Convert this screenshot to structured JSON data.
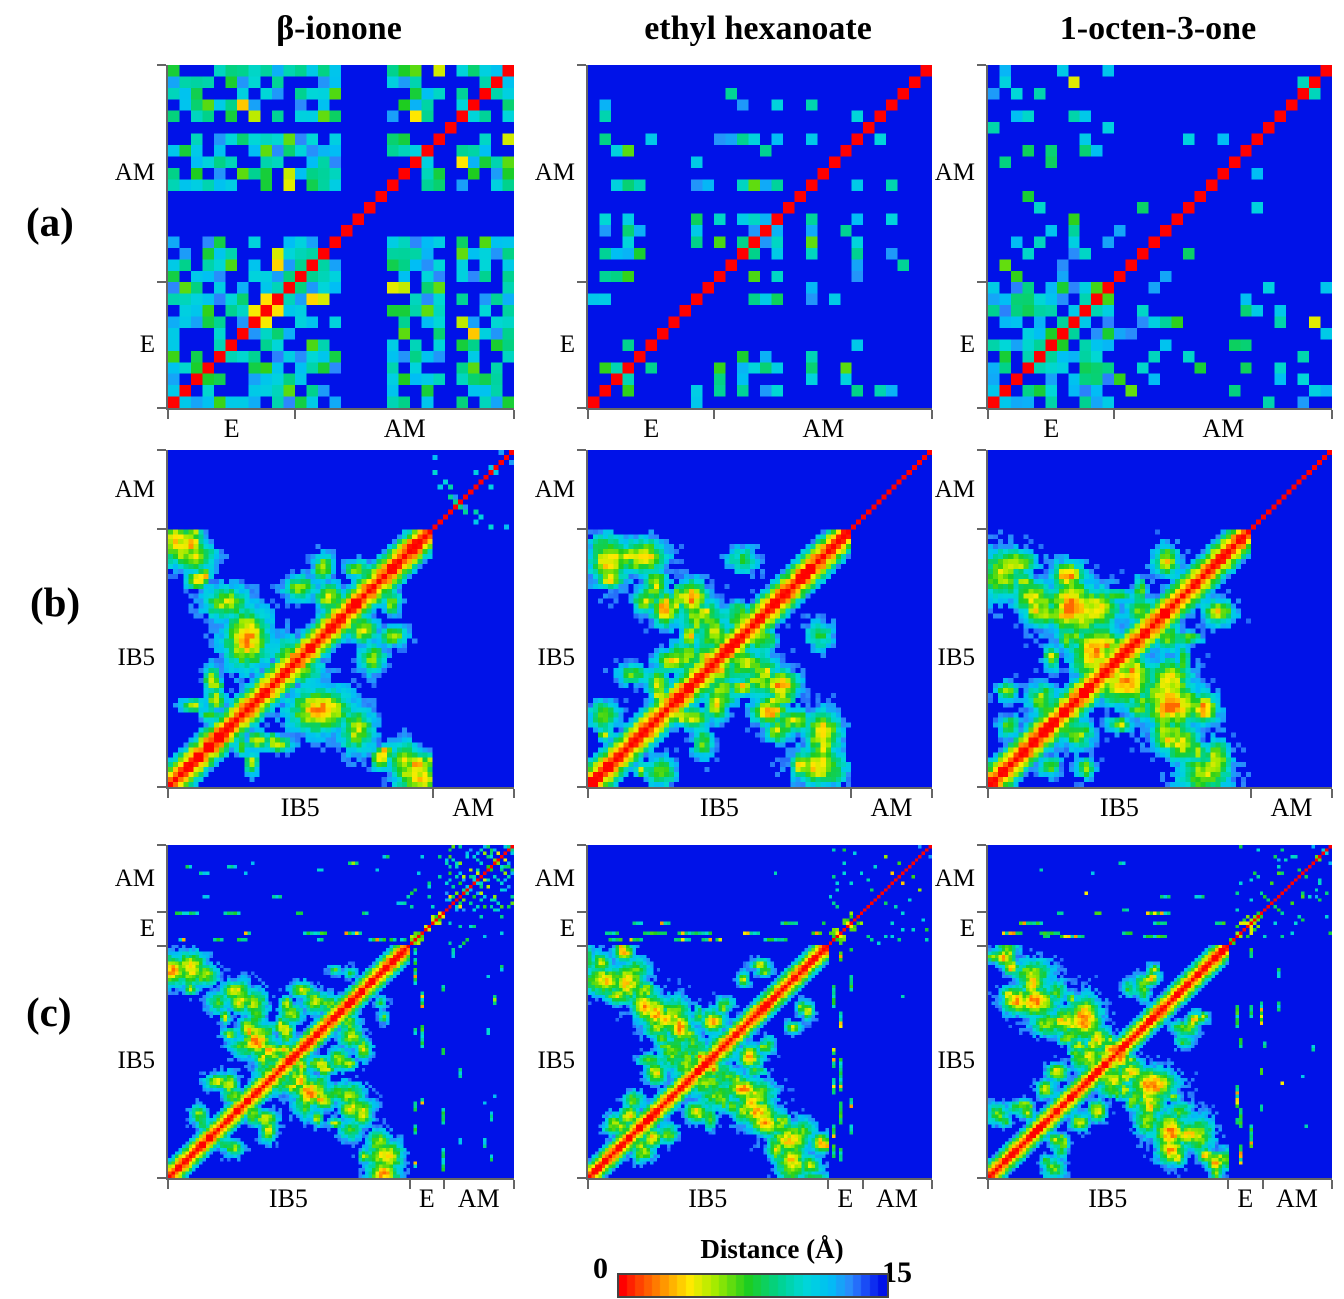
{
  "figure": {
    "column_titles": [
      "β-ionone",
      "ethyl hexanoate",
      "1-octen-3-one"
    ],
    "row_labels": [
      "(a)",
      "(b)",
      "(c)"
    ],
    "colorbar": {
      "title": "Distance (Å)",
      "min_label": "0",
      "max_label": "15",
      "min": 0,
      "max": 15,
      "orientation": "horizontal",
      "segments": 32,
      "gradient_order": "red, orange, yellow, green, cyan, light blue, blue"
    },
    "colors": {
      "background": "#ffffff",
      "matrix_far": "#0012e0",
      "matrix_near": "#ff0000",
      "axis": "#666666",
      "text": "#000000"
    }
  },
  "chart_data": [
    {
      "id": "a-beta-ionone",
      "type": "heatmap",
      "row_panel": "(a)",
      "compound": "β-ionone",
      "n": 30,
      "value_range": [
        0,
        15
      ],
      "value_label": "Distance (Å)",
      "x_blocks": [
        {
          "label": "E",
          "from": 0,
          "to": 0.367
        },
        {
          "label": "AM",
          "from": 0.367,
          "to": 1
        }
      ],
      "y_blocks": [
        {
          "label": "AM",
          "from": 0.367,
          "to": 1
        },
        {
          "label": "E",
          "from": 0,
          "to": 0.367
        }
      ],
      "x_ticks_pct": [
        0,
        36.7,
        100
      ],
      "y_ticks_pct": [
        0,
        63.3,
        100
      ],
      "pattern": {
        "kind": "speckle",
        "seed": 11,
        "density": 0.62,
        "stripes": 5,
        "clustered": false,
        "corner": false,
        "eCells": 11
      },
      "description": "E–AM residue distance matrix; red zero diagonal, dense cyan/green 8–13 Å contacts across both blocks with several all-blue (>15 Å) rows/columns."
    },
    {
      "id": "a-ethyl-hexanoate",
      "type": "heatmap",
      "row_panel": "(a)",
      "compound": "ethyl hexanoate",
      "n": 30,
      "value_range": [
        0,
        15
      ],
      "value_label": "Distance (Å)",
      "x_blocks": [
        {
          "label": "E",
          "from": 0,
          "to": 0.367
        },
        {
          "label": "AM",
          "from": 0.367,
          "to": 1
        }
      ],
      "y_blocks": [
        {
          "label": "AM",
          "from": 0.367,
          "to": 1
        },
        {
          "label": "E",
          "from": 0,
          "to": 0.367
        }
      ],
      "x_ticks_pct": [
        0,
        36.7,
        100
      ],
      "y_ticks_pct": [
        0,
        63.3,
        100
      ],
      "pattern": {
        "kind": "speckle",
        "seed": 22,
        "density": 0.5,
        "stripes": 3,
        "clustered": true,
        "corner": false,
        "eCells": 11
      },
      "description": "Sparser map: cyan/green contacts grouped in clusters, mostly blue (>15 Å) background, red zero diagonal."
    },
    {
      "id": "a-1-octen-3-one",
      "type": "heatmap",
      "row_panel": "(a)",
      "compound": "1-octen-3-one",
      "n": 30,
      "value_range": [
        0,
        15
      ],
      "value_label": "Distance (Å)",
      "x_blocks": [
        {
          "label": "E",
          "from": 0,
          "to": 0.367
        },
        {
          "label": "AM",
          "from": 0.367,
          "to": 1
        }
      ],
      "y_blocks": [
        {
          "label": "AM",
          "from": 0.367,
          "to": 1
        },
        {
          "label": "E",
          "from": 0,
          "to": 0.367
        }
      ],
      "x_ticks_pct": [
        0,
        36.7,
        100
      ],
      "y_ticks_pct": [
        0,
        63.3,
        100
      ],
      "pattern": {
        "kind": "speckle",
        "seed": 33,
        "density": 0.5,
        "stripes": 0,
        "clustered": false,
        "corner": true,
        "eCells": 11
      },
      "description": "Contacts concentrated in the E×E corner (bottom-left) with faint E×AM bands; AM×AM nearly all blue; red zero diagonal."
    },
    {
      "id": "b-beta-ionone",
      "type": "heatmap",
      "row_panel": "(b)",
      "compound": "β-ionone",
      "n": 68,
      "value_range": [
        0,
        15
      ],
      "value_label": "Distance (Å)",
      "x_blocks": [
        {
          "label": "IB5",
          "from": 0,
          "to": 0.765
        },
        {
          "label": "AM",
          "from": 0.765,
          "to": 1
        }
      ],
      "y_blocks": [
        {
          "label": "AM",
          "from": 0.765,
          "to": 1
        },
        {
          "label": "IB5",
          "from": 0,
          "to": 0.765
        }
      ],
      "x_ticks_pct": [
        0,
        76.5,
        100
      ],
      "y_ticks_pct": [
        0,
        23.5,
        100
      ],
      "pattern": {
        "kind": "contact",
        "seed": 44,
        "B": 52,
        "antiBlobs": 13,
        "diagBlobs": 9,
        "amSpeckle": 0.09
      },
      "description": "IB5–AM map: thick red/yellow/green diagonal band in IB5 with separated anti-diagonal contact blobs (X motif); AM block shows thin dotted red diagonal plus sparse cyan speckle."
    },
    {
      "id": "b-ethyl-hexanoate",
      "type": "heatmap",
      "row_panel": "(b)",
      "compound": "ethyl hexanoate",
      "n": 68,
      "value_range": [
        0,
        15
      ],
      "value_label": "Distance (Å)",
      "x_blocks": [
        {
          "label": "IB5",
          "from": 0,
          "to": 0.765
        },
        {
          "label": "AM",
          "from": 0.765,
          "to": 1
        }
      ],
      "y_blocks": [
        {
          "label": "AM",
          "from": 0.765,
          "to": 1
        },
        {
          "label": "IB5",
          "from": 0,
          "to": 0.765
        }
      ],
      "x_ticks_pct": [
        0,
        76.5,
        100
      ],
      "y_ticks_pct": [
        0,
        23.5,
        100
      ],
      "pattern": {
        "kind": "contact",
        "seed": 55,
        "B": 52,
        "antiBlobs": 21,
        "diagBlobs": 13,
        "amSpeckle": 0.012
      },
      "description": "Denser continuous X-shaped contact lattice within IB5; AM block essentially empty except dotted red diagonal."
    },
    {
      "id": "b-1-octen-3-one",
      "type": "heatmap",
      "row_panel": "(b)",
      "compound": "1-octen-3-one",
      "n": 68,
      "value_range": [
        0,
        15
      ],
      "value_label": "Distance (Å)",
      "x_blocks": [
        {
          "label": "IB5",
          "from": 0,
          "to": 0.765
        },
        {
          "label": "AM",
          "from": 0.765,
          "to": 1
        }
      ],
      "y_blocks": [
        {
          "label": "AM",
          "from": 0.765,
          "to": 1
        },
        {
          "label": "IB5",
          "from": 0,
          "to": 0.765
        }
      ],
      "x_ticks_pct": [
        0,
        76.5,
        100
      ],
      "y_ticks_pct": [
        0,
        23.5,
        100
      ],
      "pattern": {
        "kind": "contact",
        "seed": 66,
        "B": 52,
        "antiBlobs": 21,
        "diagBlobs": 13,
        "amSpeckle": 0.02
      },
      "description": "Dense X-shaped IB5 contact lattice with blue diamond voids; AM block nearly empty except dotted red diagonal."
    },
    {
      "id": "c-beta-ionone",
      "type": "heatmap",
      "row_panel": "(c)",
      "compound": "β-ionone",
      "n": 100,
      "value_range": [
        0,
        15
      ],
      "value_label": "Distance (Å)",
      "x_blocks": [
        {
          "label": "IB5",
          "from": 0,
          "to": 0.698
        },
        {
          "label": "E",
          "from": 0.698,
          "to": 0.798
        },
        {
          "label": "AM",
          "from": 0.798,
          "to": 1
        }
      ],
      "y_blocks": [
        {
          "label": "AM",
          "from": 0.798,
          "to": 1
        },
        {
          "label": "E",
          "from": 0.698,
          "to": 0.798
        },
        {
          "label": "IB5",
          "from": 0,
          "to": 0.698
        }
      ],
      "x_ticks_pct": [
        0,
        69.8,
        79.8,
        100
      ],
      "y_ticks_pct": [
        0,
        20.2,
        30.2,
        100
      ],
      "pattern": {
        "kind": "contact3",
        "seed": 77,
        "B1": 70,
        "B2": 80,
        "antiBlobs": 30,
        "diagBlobs": 17,
        "amDensity": 0.3,
        "amIb5Rows": 0.5,
        "amIb5Density": 0.12
      },
      "description": "IB5+E+AM map: dense IB5 X lattice; E rows/columns form cyan-to-orange streaks; AM corner densely speckled with dotted red diagonal; dotted AM×IB5 rows."
    },
    {
      "id": "c-ethyl-hexanoate",
      "type": "heatmap",
      "row_panel": "(c)",
      "compound": "ethyl hexanoate",
      "n": 100,
      "value_range": [
        0,
        15
      ],
      "value_label": "Distance (Å)",
      "x_blocks": [
        {
          "label": "IB5",
          "from": 0,
          "to": 0.698
        },
        {
          "label": "E",
          "from": 0.698,
          "to": 0.798
        },
        {
          "label": "AM",
          "from": 0.798,
          "to": 1
        }
      ],
      "y_blocks": [
        {
          "label": "AM",
          "from": 0.798,
          "to": 1
        },
        {
          "label": "E",
          "from": 0.698,
          "to": 0.798
        },
        {
          "label": "IB5",
          "from": 0,
          "to": 0.698
        }
      ],
      "x_ticks_pct": [
        0,
        69.8,
        79.8,
        100
      ],
      "y_ticks_pct": [
        0,
        20.2,
        30.2,
        100
      ],
      "pattern": {
        "kind": "contact3",
        "seed": 88,
        "B1": 70,
        "B2": 80,
        "antiBlobs": 34,
        "diagBlobs": 19,
        "amDensity": 0.03,
        "amIb5Rows": 0.25,
        "amIb5Density": 0.07
      },
      "description": "Dense IB5 X lattice; strong E streak rows/columns (one orange-yellow); AM corner almost empty apart from dotted red diagonal and green dots near the E/AM junction."
    },
    {
      "id": "c-1-octen-3-one",
      "type": "heatmap",
      "row_panel": "(c)",
      "compound": "1-octen-3-one",
      "n": 100,
      "value_range": [
        0,
        15
      ],
      "value_label": "Distance (Å)",
      "x_blocks": [
        {
          "label": "IB5",
          "from": 0,
          "to": 0.698
        },
        {
          "label": "E",
          "from": 0.698,
          "to": 0.798
        },
        {
          "label": "AM",
          "from": 0.798,
          "to": 1
        }
      ],
      "y_blocks": [
        {
          "label": "AM",
          "from": 0.798,
          "to": 1
        },
        {
          "label": "E",
          "from": 0.698,
          "to": 0.798
        },
        {
          "label": "IB5",
          "from": 0,
          "to": 0.698
        }
      ],
      "x_ticks_pct": [
        0,
        69.8,
        79.8,
        100
      ],
      "y_ticks_pct": [
        0,
        20.2,
        30.2,
        100
      ],
      "pattern": {
        "kind": "contact3",
        "seed": 99,
        "B1": 70,
        "B2": 80,
        "antiBlobs": 34,
        "diagBlobs": 19,
        "amDensity": 0.1,
        "amIb5Rows": 0.45,
        "amIb5Density": 0.09
      },
      "description": "Dense IB5 X lattice; E streaks with yellow column below diagonal; moderately speckled AM corner with dotted red diagonal."
    }
  ]
}
